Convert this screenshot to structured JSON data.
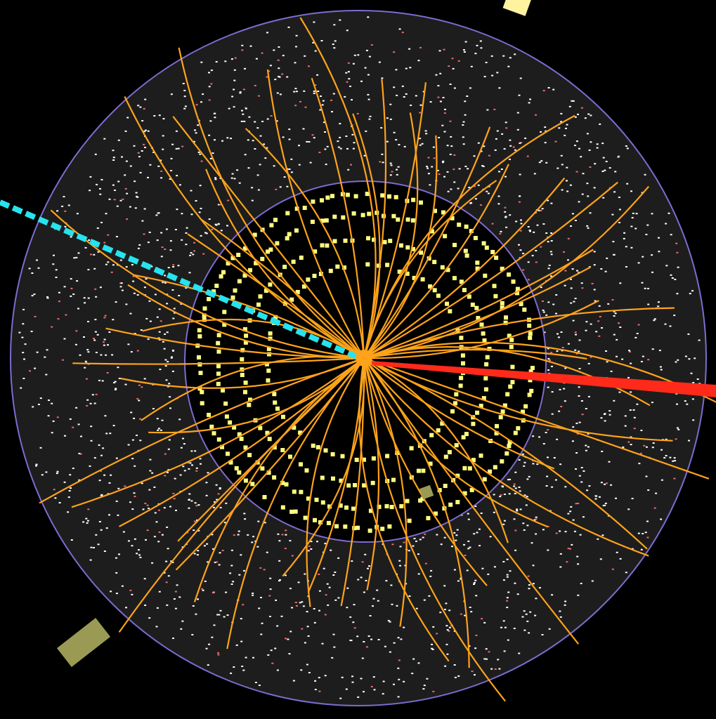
{
  "scene": {
    "subject": "particle-collision-event-display",
    "colors": {
      "background": "#000000",
      "outer_detector": "#1d1d1d",
      "inner_tracker": "#000000",
      "boundary": "#7e6bd0",
      "track": "#ffa31a",
      "inner_hit": "#ffff80",
      "outer_hit": "#ffffff",
      "outer_hit_alt": "#f06a6a",
      "neutral_jet": "#27e3ee",
      "muon_track": "#ff2a1a",
      "calorimeter_block": "#9a9a55",
      "calorimeter_top": "#fff3a0"
    },
    "track_count": 64,
    "tracker_layer_count": 4
  }
}
